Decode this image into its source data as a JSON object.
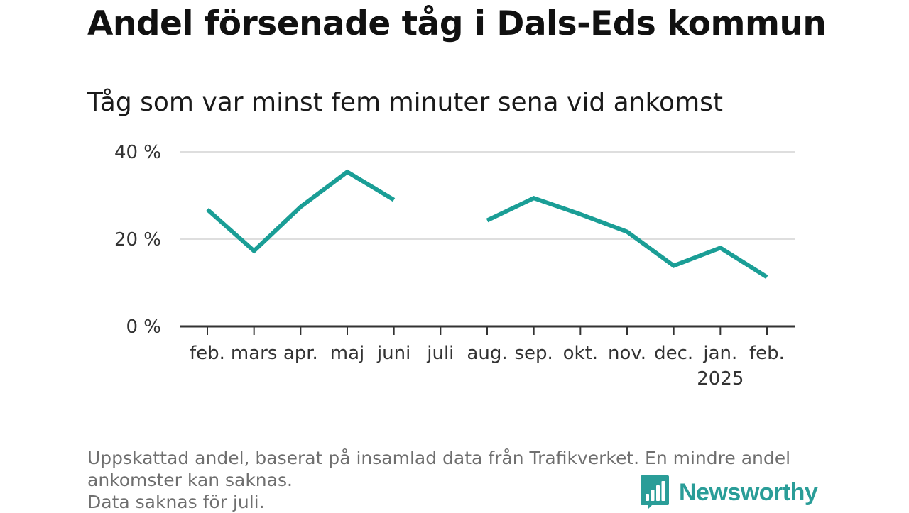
{
  "title": "Andel försenade tåg i Dals-Eds kommun",
  "subtitle": "Tåg som var minst fem minuter sena vid ankomst",
  "footnote": {
    "line1": "Uppskattad andel, baserat på insamlad data från Trafikverket. En mindre andel",
    "line2": "ankomster kan saknas.",
    "line3": "Data saknas för juli."
  },
  "brand": {
    "name": "Newsworthy",
    "icon": "bar-chart-speech-bubble-icon",
    "color": "#2a9d98"
  },
  "colors": {
    "line": "#1a9e96",
    "grid": "#dedede",
    "axis": "#333333",
    "tick_text": "#333333"
  },
  "chart_data": {
    "type": "line",
    "x": [
      "feb.",
      "mars",
      "apr.",
      "maj",
      "juni",
      "juli",
      "aug.",
      "sep.",
      "okt.",
      "nov.",
      "dec.",
      "jan.",
      "feb."
    ],
    "x_sublabels": [
      "",
      "",
      "",
      "",
      "",
      "",
      "",
      "",
      "",
      "",
      "",
      "2025",
      ""
    ],
    "series": [
      {
        "values": [
          26.8,
          17.3,
          27.4,
          35.4,
          29.0,
          null,
          24.3,
          29.4,
          25.7,
          21.7,
          13.9,
          18.0,
          11.3
        ]
      }
    ],
    "ylim": [
      0,
      40
    ],
    "yticks": [
      0,
      20,
      40
    ],
    "ytick_labels": [
      "0 %",
      "20 %",
      "40 %"
    ],
    "grid": true,
    "legend": "none"
  }
}
